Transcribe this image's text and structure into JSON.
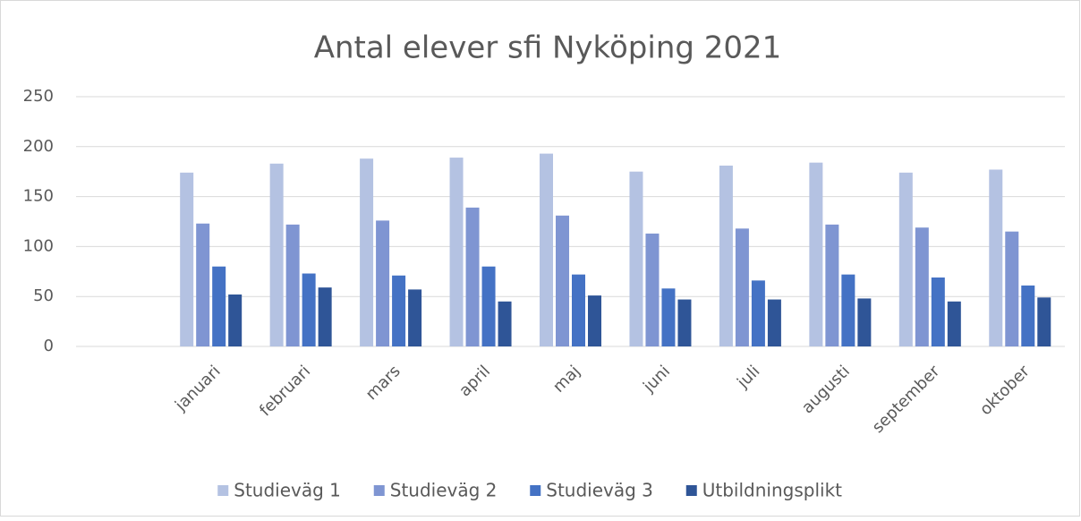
{
  "chart_data": {
    "type": "bar",
    "title": "Antal elever sfi Nyköping 2021",
    "categories": [
      null,
      "januari",
      "februari",
      "mars",
      "april",
      "maj",
      "juni",
      "juli",
      "augusti",
      "september",
      "oktober"
    ],
    "series": [
      {
        "name": "Studieväg 1",
        "color": "#b4c2e2",
        "values": [
          null,
          174,
          183,
          188,
          189,
          193,
          175,
          181,
          184,
          174,
          177
        ]
      },
      {
        "name": "Studieväg 2",
        "color": "#7f95d2",
        "values": [
          null,
          123,
          122,
          126,
          139,
          131,
          113,
          118,
          122,
          119,
          115
        ]
      },
      {
        "name": "Studieväg 3",
        "color": "#4472c4",
        "values": [
          null,
          80,
          73,
          71,
          80,
          72,
          58,
          66,
          72,
          69,
          61
        ]
      },
      {
        "name": "Utbildningsplikt",
        "color": "#2f5597",
        "values": [
          null,
          52,
          59,
          57,
          45,
          51,
          47,
          47,
          48,
          45,
          49
        ]
      }
    ],
    "ylim": [
      0,
      250
    ],
    "yticks": [
      0,
      50,
      100,
      150,
      200,
      250
    ],
    "grid": true,
    "legend": "bottom"
  }
}
